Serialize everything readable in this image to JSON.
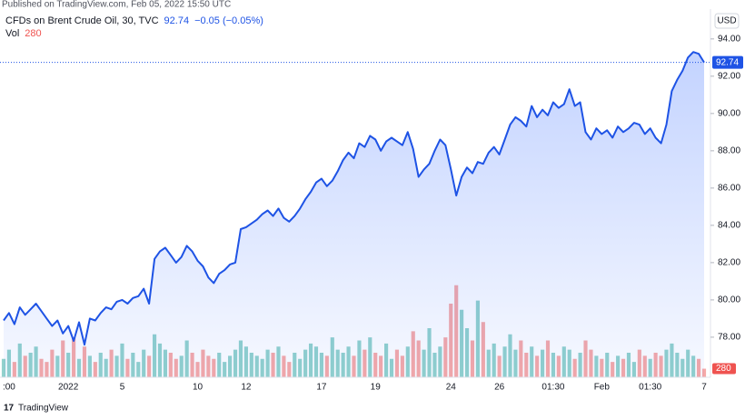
{
  "header": {
    "published": "Published on TradingView.com, Feb 05, 2022 15:50 UTC",
    "footer": "TradingView"
  },
  "chart_data": {
    "type": "line",
    "title": "CFDs on Brent Crude Oil, 30, TVC",
    "change": "−0.05 (−0.05%)",
    "currency": "USD",
    "grid": false,
    "categories": [
      null,
      ":00",
      null,
      null,
      null,
      null,
      null,
      null,
      null,
      null,
      null,
      null,
      "2022",
      null,
      null,
      null,
      null,
      null,
      null,
      null,
      null,
      null,
      "5",
      null,
      null,
      null,
      null,
      null,
      null,
      null,
      null,
      null,
      null,
      null,
      null,
      null,
      "10",
      null,
      null,
      null,
      null,
      null,
      null,
      null,
      null,
      "12",
      null,
      null,
      null,
      null,
      null,
      null,
      null,
      null,
      null,
      null,
      null,
      null,
      null,
      "17",
      null,
      null,
      null,
      null,
      null,
      null,
      null,
      null,
      null,
      "19",
      null,
      null,
      null,
      null,
      null,
      null,
      null,
      null,
      null,
      null,
      null,
      null,
      null,
      "24",
      null,
      null,
      null,
      null,
      null,
      null,
      null,
      null,
      "26",
      null,
      null,
      null,
      null,
      null,
      null,
      null,
      null,
      null,
      "01:30",
      null,
      null,
      null,
      null,
      null,
      null,
      null,
      null,
      "Feb",
      null,
      null,
      null,
      null,
      null,
      null,
      null,
      null,
      "01:30",
      null,
      null,
      null,
      null,
      null,
      null,
      null,
      null,
      null,
      "7"
    ],
    "series": [
      {
        "name": "CFDs on Brent Crude Oil",
        "color": "#1e53e5",
        "values": [
          78.9,
          79.3,
          78.7,
          79.6,
          79.2,
          79.5,
          79.8,
          79.4,
          79.0,
          78.6,
          78.9,
          78.2,
          78.6,
          77.8,
          78.8,
          77.6,
          79.0,
          78.9,
          79.3,
          79.6,
          79.5,
          79.9,
          80.0,
          79.8,
          80.1,
          80.2,
          80.6,
          79.8,
          82.2,
          82.6,
          82.8,
          82.4,
          82.0,
          82.3,
          82.9,
          82.6,
          82.1,
          81.8,
          81.2,
          80.9,
          81.4,
          81.6,
          81.9,
          82.0,
          83.8,
          83.9,
          84.1,
          84.3,
          84.6,
          84.8,
          84.5,
          84.9,
          84.4,
          84.2,
          84.5,
          84.9,
          85.4,
          85.8,
          86.3,
          86.5,
          86.1,
          86.4,
          86.9,
          87.5,
          87.9,
          87.6,
          88.4,
          88.2,
          88.8,
          88.6,
          88.0,
          88.5,
          88.7,
          88.5,
          88.3,
          89.0,
          88.1,
          86.6,
          87.0,
          87.3,
          88.0,
          88.6,
          88.3,
          87.0,
          85.6,
          86.6,
          87.1,
          86.8,
          87.4,
          87.3,
          87.9,
          88.2,
          87.8,
          88.6,
          89.4,
          89.8,
          89.6,
          89.3,
          90.4,
          89.8,
          90.2,
          89.9,
          90.6,
          90.3,
          90.5,
          91.3,
          90.4,
          90.6,
          89.0,
          88.6,
          89.2,
          88.9,
          89.1,
          88.7,
          89.3,
          89.0,
          89.2,
          89.5,
          89.4,
          88.9,
          89.2,
          88.7,
          88.4,
          89.4,
          91.2,
          91.8,
          92.3,
          93.0,
          93.3,
          93.2,
          92.74
        ]
      }
    ],
    "volume": {
      "name": "Vol",
      "up_color": "rgba(38,166,154,0.5)",
      "down_color": "rgba(239,83,80,0.5)",
      "ylim": [
        0,
        12000
      ],
      "values": [
        600,
        900,
        500,
        1100,
        700,
        800,
        1000,
        600,
        500,
        900,
        700,
        1200,
        800,
        1300,
        600,
        1000,
        700,
        500,
        800,
        600,
        900,
        700,
        1100,
        600,
        800,
        500,
        900,
        700,
        1400,
        1100,
        900,
        800,
        600,
        700,
        1200,
        800,
        500,
        900,
        700,
        600,
        800,
        500,
        700,
        900,
        1200,
        1000,
        800,
        700,
        600,
        900,
        800,
        1000,
        700,
        500,
        800,
        600,
        900,
        1100,
        1000,
        800,
        700,
        1300,
        900,
        800,
        1000,
        700,
        1200,
        900,
        1300,
        800,
        700,
        1100,
        600,
        900,
        700,
        1000,
        1500,
        1200,
        900,
        1600,
        800,
        1000,
        1300,
        2400,
        3000,
        2200,
        1600,
        1200,
        2500,
        1800,
        900,
        1100,
        700,
        1000,
        1400,
        900,
        1200,
        800,
        1000,
        700,
        900,
        1200,
        800,
        700,
        1000,
        900,
        600,
        800,
        1200,
        900,
        700,
        600,
        800,
        500,
        700,
        600,
        800,
        500,
        900,
        700,
        600,
        800,
        700,
        900,
        1100,
        800,
        600,
        900,
        700,
        600,
        280
      ]
    },
    "ylim": [
      75.85,
      95.6
    ],
    "yticks": [
      {
        "value": 78,
        "label": "78.00"
      },
      {
        "value": 80,
        "label": "80.00"
      },
      {
        "value": 82,
        "label": "82.00"
      },
      {
        "value": 84,
        "label": "84.00"
      },
      {
        "value": 86,
        "label": "86.00"
      },
      {
        "value": 88,
        "label": "88.00"
      },
      {
        "value": 90,
        "label": "90.00"
      },
      {
        "value": 92,
        "label": "92.00"
      },
      {
        "value": 94,
        "label": "94.00"
      }
    ]
  }
}
